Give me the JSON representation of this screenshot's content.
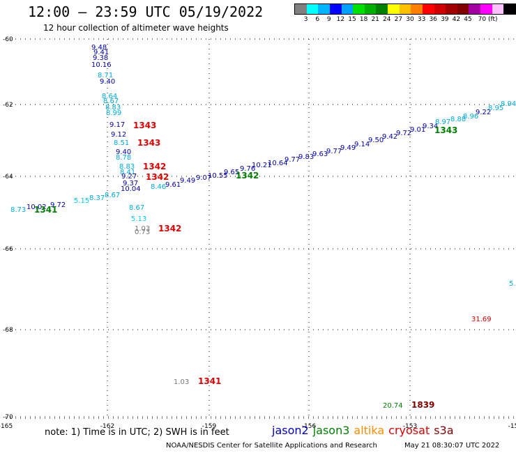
{
  "header": {
    "title": "12:00 – 23:59 UTC 05/19/2022",
    "subtitle": "12 hour collection of altimeter wave heights"
  },
  "legend": {
    "colors": [
      "#808080",
      "#00ffff",
      "#00b4ff",
      "#0000ff",
      "#00a0ff",
      "#00e000",
      "#00b000",
      "#008000",
      "#ffff00",
      "#ffc000",
      "#ff8000",
      "#ff0000",
      "#d00000",
      "#a00000",
      "#800000",
      "#a000a0",
      "#ff00ff",
      "#ffc0ff",
      "#000000"
    ],
    "ticks": [
      "3",
      "6",
      "9",
      "12",
      "15",
      "18",
      "21",
      "24",
      "27",
      "30",
      "33",
      "36",
      "39",
      "42",
      "45",
      "70 (ft)"
    ]
  },
  "map": {
    "x_ticks": [
      "-165",
      "-162",
      "-159",
      "-156",
      "-153",
      "-15"
    ],
    "y_ticks": [
      "-60",
      "-62",
      "-64",
      "-66",
      "-68",
      "-70"
    ]
  },
  "footer": {
    "note": "note:  1) Time is in UTC;  2) SWH is in feet",
    "satellites": [
      {
        "name": "jason2",
        "color": "#0000cc"
      },
      {
        "name": "jason3",
        "color": "#008000"
      },
      {
        "name": "altika",
        "color": "#ff8c00"
      },
      {
        "name": "cryosat",
        "color": "#dd0000"
      },
      {
        "name": "s3a",
        "color": "#800000"
      }
    ],
    "credit": "NOAA/NESDIS Center for Satellite Applications and Research",
    "timestamp": "May 21 08:30:07 UTC 2022"
  },
  "observations": [
    {
      "text": "9.48",
      "color": "#0000aa"
    },
    {
      "text": "9.41",
      "color": "#0000aa"
    },
    {
      "text": "9.38",
      "color": "#0000aa"
    },
    {
      "text": "10.16",
      "color": "#0000aa"
    },
    {
      "text": "8.71",
      "color": "#00aadd"
    },
    {
      "text": "9.40",
      "color": "#0000aa"
    },
    {
      "text": "8.64",
      "color": "#00aadd"
    },
    {
      "text": "8.67",
      "color": "#00aadd"
    },
    {
      "text": "8.83",
      "color": "#00aadd"
    },
    {
      "text": "8.99",
      "color": "#00aadd"
    },
    {
      "text": "9.17",
      "color": "#0000aa"
    },
    {
      "text": "9.12",
      "color": "#0000aa"
    },
    {
      "text": "8.51",
      "color": "#00aadd"
    },
    {
      "text": "9.40",
      "color": "#0000aa"
    },
    {
      "text": "8.78",
      "color": "#00aadd"
    },
    {
      "text": "8.83",
      "color": "#00aadd"
    },
    {
      "text": "8.41",
      "color": "#00aadd"
    },
    {
      "text": "9.27",
      "color": "#0000aa"
    },
    {
      "text": "9.37",
      "color": "#0000aa"
    },
    {
      "text": "10.04",
      "color": "#0000aa"
    },
    {
      "text": "8.46",
      "color": "#00aadd"
    },
    {
      "text": "8.67",
      "color": "#00aadd"
    },
    {
      "text": "5.13",
      "color": "#00ccee"
    },
    {
      "text": "1.03",
      "color": "#777777"
    },
    {
      "text": "0.73",
      "color": "#777777"
    },
    {
      "text": "8.73",
      "color": "#00aadd"
    },
    {
      "text": "10.02",
      "color": "#0000aa"
    },
    {
      "text": "9.72",
      "color": "#0000aa"
    },
    {
      "text": "5.15",
      "color": "#00ccee"
    },
    {
      "text": "8.37",
      "color": "#00aadd"
    },
    {
      "text": "8.67",
      "color": "#00aadd"
    },
    {
      "text": "9.61",
      "color": "#0000aa"
    },
    {
      "text": "9.49",
      "color": "#0000aa"
    },
    {
      "text": "9.07",
      "color": "#0000aa"
    },
    {
      "text": "10.55",
      "color": "#0000aa"
    },
    {
      "text": "9.65",
      "color": "#0000aa"
    },
    {
      "text": "9.76",
      "color": "#0000aa"
    },
    {
      "text": "10.21",
      "color": "#0000aa"
    },
    {
      "text": "10.64",
      "color": "#0000aa"
    },
    {
      "text": "9.77",
      "color": "#0000aa"
    },
    {
      "text": "9.83",
      "color": "#0000aa"
    },
    {
      "text": "9.63",
      "color": "#0000aa"
    },
    {
      "text": "9.77",
      "color": "#0000aa"
    },
    {
      "text": "9.49",
      "color": "#0000aa"
    },
    {
      "text": "9.14",
      "color": "#0000aa"
    },
    {
      "text": "9.50",
      "color": "#0000aa"
    },
    {
      "text": "9.42",
      "color": "#0000aa"
    },
    {
      "text": "9.72",
      "color": "#0000aa"
    },
    {
      "text": "9.01",
      "color": "#0000aa"
    },
    {
      "text": "9.34",
      "color": "#0000aa"
    },
    {
      "text": "8.97",
      "color": "#00aadd"
    },
    {
      "text": "8.88",
      "color": "#00aadd"
    },
    {
      "text": "8.96",
      "color": "#00aadd"
    },
    {
      "text": "9.22",
      "color": "#0000aa"
    },
    {
      "text": "8.95",
      "color": "#00aadd"
    },
    {
      "text": "8.94",
      "color": "#00aadd"
    },
    {
      "text": "1.03",
      "color": "#777777"
    },
    {
      "text": "31.69",
      "color": "#dd0000"
    },
    {
      "text": "20.74",
      "color": "#008000"
    },
    {
      "text": "5.",
      "color": "#00aadd"
    }
  ],
  "pass_labels": [
    {
      "text": "1343",
      "color": "#dd0000"
    },
    {
      "text": "1343",
      "color": "#dd0000"
    },
    {
      "text": "1342",
      "color": "#dd0000"
    },
    {
      "text": "1342",
      "color": "#dd0000"
    },
    {
      "text": "1342",
      "color": "#dd0000"
    },
    {
      "text": "1341",
      "color": "#008000"
    },
    {
      "text": "1342",
      "color": "#008000"
    },
    {
      "text": "1343",
      "color": "#008000"
    },
    {
      "text": "1341",
      "color": "#dd0000"
    },
    {
      "text": "1839",
      "color": "#800000"
    }
  ]
}
